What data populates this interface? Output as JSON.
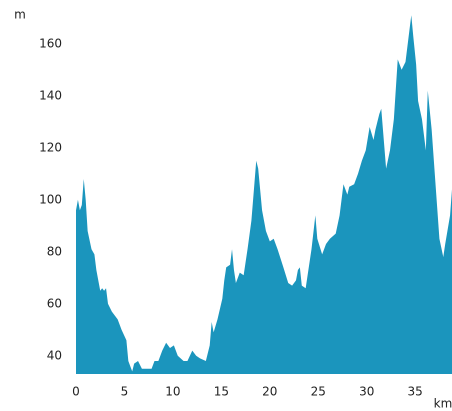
{
  "chart_data": {
    "type": "area",
    "y_label": "m",
    "x_label": "km",
    "color": "#1b95bd",
    "xlim": [
      0,
      38.8
    ],
    "ylim": [
      33,
      173
    ],
    "xticks": [
      0,
      5,
      10,
      15,
      20,
      25,
      30,
      35
    ],
    "yticks": [
      40,
      60,
      80,
      100,
      120,
      140,
      160
    ],
    "grid": false,
    "x": [
      0.0,
      0.2,
      0.4,
      0.6,
      0.8,
      1.0,
      1.2,
      1.6,
      1.9,
      2.1,
      2.5,
      2.7,
      2.9,
      3.1,
      3.3,
      3.7,
      4.3,
      4.7,
      5.2,
      5.4,
      5.8,
      6.0,
      6.4,
      6.8,
      7.4,
      7.8,
      8.1,
      8.5,
      8.9,
      9.3,
      9.7,
      10.1,
      10.5,
      11.1,
      11.5,
      12.0,
      12.4,
      12.8,
      13.4,
      13.8,
      14.0,
      14.2,
      14.6,
      15.1,
      15.3,
      15.5,
      15.9,
      16.1,
      16.3,
      16.5,
      16.9,
      17.3,
      17.7,
      18.1,
      18.6,
      18.8,
      19.2,
      19.6,
      20.0,
      20.4,
      20.8,
      21.4,
      21.9,
      22.3,
      22.7,
      22.9,
      23.1,
      23.3,
      23.7,
      24.3,
      24.7,
      24.9,
      25.4,
      25.8,
      26.2,
      26.8,
      27.2,
      27.6,
      28.0,
      28.2,
      28.7,
      29.1,
      29.5,
      29.9,
      30.3,
      30.7,
      30.9,
      31.3,
      31.5,
      32.0,
      32.4,
      32.8,
      33.2,
      33.6,
      34.0,
      34.4,
      34.6,
      34.8,
      35.1,
      35.3,
      35.7,
      36.1,
      36.3,
      36.7,
      37.1,
      37.5,
      37.9,
      38.1,
      38.6,
      38.8
    ],
    "values": [
      96,
      100,
      96,
      98,
      108,
      100,
      88,
      81,
      79,
      73,
      65,
      66,
      65,
      66,
      60,
      57,
      54,
      50,
      46,
      38,
      34,
      37,
      38,
      35,
      35,
      35,
      38,
      38,
      42,
      45,
      43,
      44,
      40,
      38,
      38,
      42,
      40,
      39,
      38,
      44,
      53,
      49,
      54,
      62,
      69,
      74,
      75,
      81,
      73,
      68,
      72,
      71,
      81,
      92,
      115,
      112,
      96,
      88,
      84,
      85,
      81,
      74,
      68,
      67,
      69,
      73,
      74,
      67,
      66,
      81,
      94,
      85,
      79,
      83,
      85,
      87,
      94,
      106,
      102,
      105,
      106,
      110,
      115,
      119,
      128,
      123,
      127,
      133,
      135,
      112,
      119,
      131,
      154,
      150,
      153,
      165,
      171,
      163,
      152,
      138,
      131,
      119,
      142,
      127,
      106,
      85,
      78,
      83,
      94,
      104
    ]
  }
}
